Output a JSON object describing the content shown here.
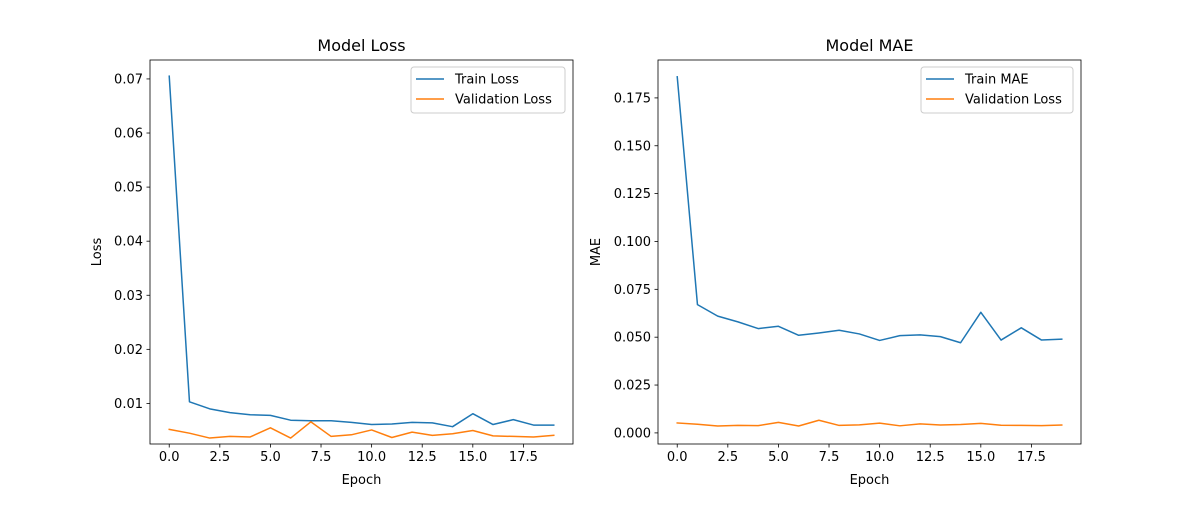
{
  "chart_data": [
    {
      "type": "line",
      "title": "Model Loss",
      "xlabel": "Epoch",
      "ylabel": "Loss",
      "xlim": [
        -0.95,
        19.95
      ],
      "ylim": [
        0.0025,
        0.0735
      ],
      "xticks": [
        0.0,
        2.5,
        5.0,
        7.5,
        10.0,
        12.5,
        15.0,
        17.5
      ],
      "xtick_labels": [
        "0.0",
        "2.5",
        "5.0",
        "7.5",
        "10.0",
        "12.5",
        "15.0",
        "17.5"
      ],
      "yticks": [
        0.01,
        0.02,
        0.03,
        0.04,
        0.05,
        0.06,
        0.07
      ],
      "ytick_labels": [
        "0.01",
        "0.02",
        "0.03",
        "0.04",
        "0.05",
        "0.06",
        "0.07"
      ],
      "grid": false,
      "legend_position": "upper right",
      "x": [
        0,
        1,
        2,
        3,
        4,
        5,
        6,
        7,
        8,
        9,
        10,
        11,
        12,
        13,
        14,
        15,
        16,
        17,
        18,
        19
      ],
      "series": [
        {
          "name": "Train Loss",
          "color": "#1f77b4",
          "values": [
            0.0705,
            0.0103,
            0.009,
            0.0083,
            0.0079,
            0.0078,
            0.0069,
            0.0068,
            0.0068,
            0.0065,
            0.0061,
            0.0062,
            0.0065,
            0.0064,
            0.0057,
            0.0081,
            0.0061,
            0.007,
            0.006,
            0.006
          ]
        },
        {
          "name": "Validation Loss",
          "color": "#ff7f0e",
          "values": [
            0.0052,
            0.0045,
            0.0036,
            0.0039,
            0.0038,
            0.0055,
            0.0036,
            0.0066,
            0.0039,
            0.0042,
            0.0051,
            0.0037,
            0.0047,
            0.0041,
            0.0044,
            0.005,
            0.004,
            0.0039,
            0.0038,
            0.0041
          ]
        }
      ]
    },
    {
      "type": "line",
      "title": "Model MAE",
      "xlabel": "Epoch",
      "ylabel": "MAE",
      "xlim": [
        -0.95,
        19.95
      ],
      "ylim": [
        -0.0058,
        0.1948
      ],
      "xticks": [
        0.0,
        2.5,
        5.0,
        7.5,
        10.0,
        12.5,
        15.0,
        17.5
      ],
      "xtick_labels": [
        "0.0",
        "2.5",
        "5.0",
        "7.5",
        "10.0",
        "12.5",
        "15.0",
        "17.5"
      ],
      "yticks": [
        0.0,
        0.025,
        0.05,
        0.075,
        0.1,
        0.125,
        0.15,
        0.175
      ],
      "ytick_labels": [
        "0.000",
        "0.025",
        "0.050",
        "0.075",
        "0.100",
        "0.125",
        "0.150",
        "0.175"
      ],
      "grid": false,
      "legend_position": "upper right",
      "x": [
        0,
        1,
        2,
        3,
        4,
        5,
        6,
        7,
        8,
        9,
        10,
        11,
        12,
        13,
        14,
        15,
        16,
        17,
        18,
        19
      ],
      "series": [
        {
          "name": "Train MAE",
          "color": "#1f77b4",
          "values": [
            0.186,
            0.067,
            0.061,
            0.058,
            0.0545,
            0.0557,
            0.051,
            0.0522,
            0.0536,
            0.0517,
            0.0483,
            0.0508,
            0.0512,
            0.0503,
            0.0471,
            0.063,
            0.0485,
            0.0549,
            0.0485,
            0.049
          ]
        },
        {
          "name": "Validation Loss",
          "color": "#ff7f0e",
          "values": [
            0.0052,
            0.0045,
            0.0036,
            0.0039,
            0.0038,
            0.0055,
            0.0036,
            0.0066,
            0.0039,
            0.0042,
            0.0051,
            0.0037,
            0.0047,
            0.0041,
            0.0044,
            0.005,
            0.004,
            0.0039,
            0.0038,
            0.0041
          ]
        }
      ]
    }
  ]
}
